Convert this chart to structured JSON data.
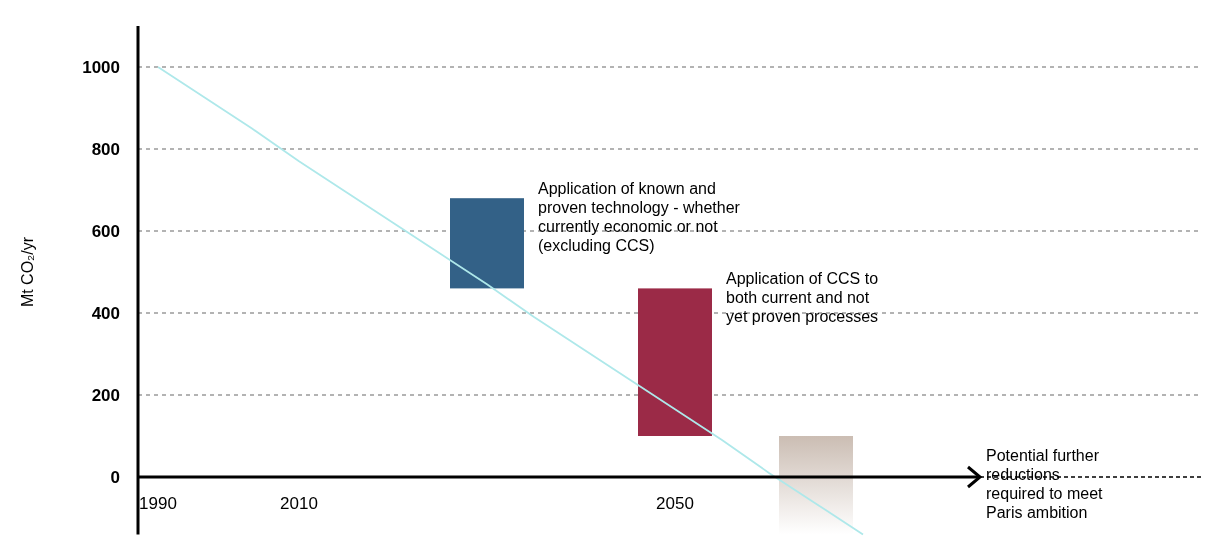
{
  "chart_data": {
    "type": "bar",
    "ylabel": "Mt CO₂/yr",
    "categories": [
      "1990",
      null,
      null,
      "2010",
      null,
      null,
      null,
      null,
      null,
      null,
      null,
      "2050",
      null,
      null,
      null,
      null
    ],
    "series": [
      {
        "colors": [
          null,
          null,
          null,
          null,
          null,
          null,
          null,
          "#336187",
          null,
          null,
          null,
          "#9b2a47",
          null,
          null,
          "#cbbdb3",
          null
        ],
        "values": [
          null,
          null,
          null,
          null,
          null,
          null,
          null,
          220,
          null,
          null,
          null,
          360,
          null,
          null,
          240,
          null
        ],
        "base": [
          null,
          null,
          null,
          null,
          null,
          null,
          null,
          460,
          null,
          null,
          null,
          100,
          null,
          null,
          -140,
          null
        ]
      },
      {
        "type": "line",
        "color": "#aee8ea",
        "values": [
          1000,
          925,
          850,
          770,
          695,
          620,
          545,
          470,
          390,
          315,
          240,
          165,
          90,
          10,
          -65,
          -140
        ]
      }
    ],
    "ylim": [
      -140,
      1100
    ],
    "yticks": [
      0,
      200,
      400,
      600,
      800,
      1000
    ],
    "grid": "y",
    "annotations": [
      "Application of known and proven technology - whether currently economic or not (excluding CCS)",
      "Application of CCS to both current and not yet proven processes",
      "Potential further reductions required to meet Paris ambition"
    ]
  }
}
